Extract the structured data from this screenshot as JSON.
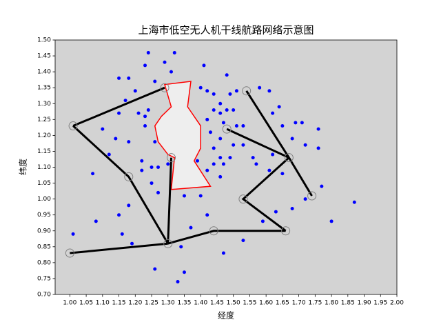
{
  "chart_data": {
    "type": "scatter",
    "title": "上海市低空无人机干线航路网络示意图",
    "x_label": "经度",
    "y_label": "纬度",
    "facecolor": "#d3d3d3",
    "xlim": [
      0.955,
      2.0
    ],
    "ylim": [
      0.7,
      1.5
    ],
    "xticks": [
      {
        "value": 1.0,
        "label": "1.00"
      },
      {
        "value": 1.05,
        "label": "1.05"
      },
      {
        "value": 1.1,
        "label": "1.10"
      },
      {
        "value": 1.15,
        "label": "1.15"
      },
      {
        "value": 1.2,
        "label": "1.20"
      },
      {
        "value": 1.25,
        "label": "1.25"
      },
      {
        "value": 1.3,
        "label": "1.30"
      },
      {
        "value": 1.35,
        "label": "1.35"
      },
      {
        "value": 1.4,
        "label": "1.40"
      },
      {
        "value": 1.45,
        "label": "1.45"
      },
      {
        "value": 1.5,
        "label": "1.50"
      },
      {
        "value": 1.55,
        "label": "1.55"
      },
      {
        "value": 1.6,
        "label": "1.60"
      },
      {
        "value": 1.65,
        "label": "1.65"
      },
      {
        "value": 1.7,
        "label": "1.70"
      },
      {
        "value": 1.75,
        "label": "1.75"
      },
      {
        "value": 1.8,
        "label": "1.80"
      },
      {
        "value": 1.85,
        "label": "1.85"
      },
      {
        "value": 1.9,
        "label": "1.90"
      },
      {
        "value": 1.95,
        "label": "1.95"
      },
      {
        "value": 2.0,
        "label": "2.00"
      }
    ],
    "yticks": [
      {
        "value": 0.7,
        "label": "0.70"
      },
      {
        "value": 0.75,
        "label": "0.75"
      },
      {
        "value": 0.8,
        "label": "0.80"
      },
      {
        "value": 0.85,
        "label": "0.85"
      },
      {
        "value": 0.9,
        "label": "0.90"
      },
      {
        "value": 0.95,
        "label": "0.95"
      },
      {
        "value": 1.0,
        "label": "1.00"
      },
      {
        "value": 1.05,
        "label": "1.05"
      },
      {
        "value": 1.1,
        "label": "1.10"
      },
      {
        "value": 1.15,
        "label": "1.15"
      },
      {
        "value": 1.2,
        "label": "1.20"
      },
      {
        "value": 1.25,
        "label": "1.25"
      },
      {
        "value": 1.3,
        "label": "1.30"
      },
      {
        "value": 1.35,
        "label": "1.35"
      },
      {
        "value": 1.4,
        "label": "1.40"
      },
      {
        "value": 1.45,
        "label": "1.45"
      },
      {
        "value": 1.5,
        "label": "1.50"
      }
    ],
    "no_fly_zone": {
      "edge_color": "red",
      "fill_color": "#eeeeee",
      "x": [
        1.29,
        1.37,
        1.36,
        1.4,
        1.4,
        1.38,
        1.43,
        1.31,
        1.32,
        1.3,
        1.27,
        1.26,
        1.28,
        1.31
      ],
      "y": [
        1.36,
        1.37,
        1.29,
        1.23,
        1.16,
        1.12,
        1.04,
        1.03,
        1.13,
        1.14,
        1.18,
        1.23,
        1.26,
        1.29
      ]
    },
    "points": {
      "color": "blue",
      "x": [
        1.24,
        1.32,
        1.29,
        1.41,
        1.23,
        1.31,
        1.48,
        1.15,
        1.18,
        1.26,
        1.2,
        1.17,
        1.21,
        1.24,
        1.23,
        1.23,
        1.42,
        1.44,
        1.46,
        1.49,
        1.58,
        1.61,
        1.64,
        1.62,
        1.65,
        1.71,
        1.76,
        1.68,
        1.72,
        1.76,
        1.65,
        1.77,
        1.72,
        1.68,
        1.8,
        1.87,
        1.59,
        1.53,
        1.47,
        1.42,
        1.4,
        1.35,
        1.37,
        1.34,
        1.35,
        1.33,
        1.26,
        1.19,
        1.15,
        1.18,
        1.25,
        1.27,
        1.27,
        1.25,
        1.18,
        1.14,
        1.1,
        1.12,
        1.07,
        1.08,
        1.01,
        1.46,
        1.44,
        1.42,
        1.46,
        1.44,
        1.42,
        1.44,
        1.46,
        1.48,
        1.5,
        1.51,
        1.53,
        1.53,
        1.5,
        1.56,
        1.57,
        1.62,
        1.61,
        1.49,
        1.47,
        1.46,
        1.43,
        1.47,
        1.39,
        1.22,
        1.22,
        1.26,
        1.15,
        1.3,
        1.4,
        1.51,
        1.69,
        1.63,
        1.16
      ],
      "y": [
        1.46,
        1.46,
        1.43,
        1.42,
        1.42,
        1.4,
        1.39,
        1.38,
        1.38,
        1.37,
        1.34,
        1.31,
        1.27,
        1.28,
        1.26,
        1.23,
        1.34,
        1.33,
        1.3,
        1.33,
        1.35,
        1.34,
        1.29,
        1.27,
        1.23,
        1.24,
        1.22,
        1.19,
        1.17,
        1.16,
        1.08,
        1.04,
        1.0,
        0.97,
        0.93,
        0.99,
        0.93,
        0.87,
        0.83,
        0.95,
        1.01,
        1.01,
        0.91,
        0.85,
        0.77,
        0.74,
        0.78,
        0.86,
        0.95,
        0.98,
        1.05,
        1.02,
        1.1,
        1.1,
        1.18,
        1.19,
        1.22,
        1.14,
        1.08,
        0.93,
        0.89,
        1.07,
        1.11,
        1.09,
        1.13,
        1.16,
        1.25,
        1.28,
        1.27,
        1.28,
        1.28,
        1.23,
        1.23,
        1.17,
        1.17,
        1.13,
        1.11,
        1.14,
        1.09,
        1.13,
        1.11,
        1.19,
        1.21,
        1.24,
        1.12,
        1.12,
        1.09,
        1.18,
        1.27,
        1.11,
        1.35,
        1.34,
        1.24,
        0.96,
        0.89
      ]
    },
    "routes": {
      "color": "black",
      "lines": [
        {
          "x": [
            1.01,
            1.29
          ],
          "y": [
            1.23,
            1.35
          ]
        },
        {
          "x": [
            1.01,
            1.18,
            1.3
          ],
          "y": [
            1.23,
            1.07,
            0.86
          ]
        },
        {
          "x": [
            1.0,
            1.3
          ],
          "y": [
            0.83,
            0.86
          ]
        },
        {
          "x": [
            1.31,
            1.3
          ],
          "y": [
            1.13,
            0.86
          ]
        },
        {
          "x": [
            1.3,
            1.44,
            1.66
          ],
          "y": [
            0.86,
            0.9,
            0.9
          ]
        },
        {
          "x": [
            1.54,
            1.67
          ],
          "y": [
            1.34,
            1.13
          ]
        },
        {
          "x": [
            1.48,
            1.67
          ],
          "y": [
            1.22,
            1.13
          ]
        },
        {
          "x": [
            1.67,
            1.74
          ],
          "y": [
            1.13,
            1.01
          ]
        },
        {
          "x": [
            1.67,
            1.53,
            1.66
          ],
          "y": [
            1.13,
            1.0,
            0.9
          ]
        }
      ]
    },
    "nodes": {
      "color": "gray",
      "x": [
        1.01,
        1.29,
        1.18,
        1.31,
        1.3,
        1.0,
        1.44,
        1.66,
        1.54,
        1.48,
        1.67,
        1.74,
        1.53
      ],
      "y": [
        1.23,
        1.35,
        1.07,
        1.13,
        0.86,
        0.83,
        0.9,
        0.9,
        1.34,
        1.22,
        1.13,
        1.01,
        1.0
      ]
    }
  }
}
